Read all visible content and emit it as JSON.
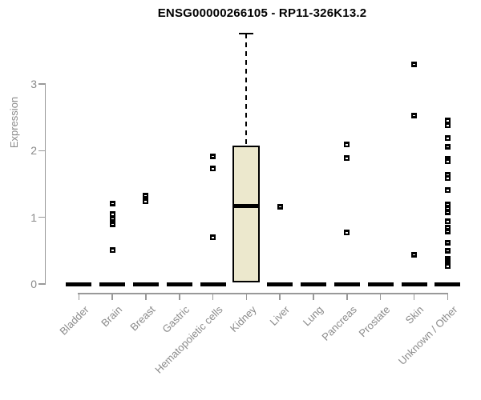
{
  "chart_data": {
    "type": "box",
    "title": "ENSG00000266105 - RP11-326K13.2",
    "ylabel": "Expression",
    "xlabel": "",
    "ylim": [
      0,
      3.76
    ],
    "yticks": [
      0,
      1,
      2,
      3
    ],
    "grid": false,
    "legend": "none",
    "categories": [
      "Bladder",
      "Brain",
      "Breast",
      "Gastric",
      "Hematopoietic cells",
      "Kidney",
      "Liver",
      "Lung",
      "Pancreas",
      "Prostate",
      "Skin",
      "Unknown / Other"
    ],
    "boxes": [
      {
        "label": "Bladder",
        "whisker_low": 0,
        "q1": 0,
        "median": 0,
        "q3": 0,
        "whisker_high": 0,
        "outliers": []
      },
      {
        "label": "Brain",
        "whisker_low": 0,
        "q1": 0,
        "median": 0,
        "q3": 0,
        "whisker_high": 0,
        "outliers": [
          1.21,
          1.05,
          0.98,
          0.9,
          0.51
        ]
      },
      {
        "label": "Breast",
        "whisker_low": 0,
        "q1": 0,
        "median": 0,
        "q3": 0,
        "whisker_high": 0,
        "outliers": [
          1.33,
          1.24
        ]
      },
      {
        "label": "Gastric",
        "whisker_low": 0,
        "q1": 0,
        "median": 0,
        "q3": 0,
        "whisker_high": 0,
        "outliers": []
      },
      {
        "label": "Hematopoietic cells",
        "whisker_low": 0,
        "q1": 0,
        "median": 0,
        "q3": 0,
        "whisker_high": 0,
        "outliers": [
          1.92,
          1.73,
          0.7
        ]
      },
      {
        "label": "Kidney",
        "whisker_low": 0.02,
        "q1": 0.02,
        "median": 1.17,
        "q3": 2.08,
        "whisker_high": 3.76,
        "outliers": []
      },
      {
        "label": "Liver",
        "whisker_low": 0,
        "q1": 0,
        "median": 0,
        "q3": 0,
        "whisker_high": 0,
        "outliers": [
          1.16
        ]
      },
      {
        "label": "Lung",
        "whisker_low": 0,
        "q1": 0,
        "median": 0,
        "q3": 0,
        "whisker_high": 0,
        "outliers": []
      },
      {
        "label": "Pancreas",
        "whisker_low": 0,
        "q1": 0,
        "median": 0,
        "q3": 0,
        "whisker_high": 0,
        "outliers": [
          2.09,
          1.89,
          0.77
        ]
      },
      {
        "label": "Prostate",
        "whisker_low": 0,
        "q1": 0,
        "median": 0,
        "q3": 0,
        "whisker_high": 0,
        "outliers": []
      },
      {
        "label": "Skin",
        "whisker_low": 0,
        "q1": 0,
        "median": 0,
        "q3": 0,
        "whisker_high": 0,
        "outliers": [
          3.3,
          2.53,
          0.44
        ]
      },
      {
        "label": "Unknown / Other",
        "whisker_low": 0,
        "q1": 0,
        "median": 0,
        "q3": 0,
        "whisker_high": 0,
        "outliers": [
          2.45,
          2.38,
          2.19,
          2.06,
          1.88,
          1.84,
          1.64,
          1.59,
          1.41,
          1.2,
          1.14,
          1.08,
          0.94,
          0.85,
          0.79,
          0.62,
          0.5,
          0.38,
          0.35,
          0.32,
          0.29,
          0.27
        ]
      }
    ],
    "colors": {
      "box_fill": "#ece8cd",
      "box_border": "#000000",
      "median": "#000000",
      "whisker": "#000000",
      "outlier": "#000000",
      "axis_line": "#999999",
      "axis_text": "#8a8a8a",
      "title_text": "#000000",
      "background": "#ffffff"
    },
    "marker": "filled-square-with-white-dash"
  }
}
